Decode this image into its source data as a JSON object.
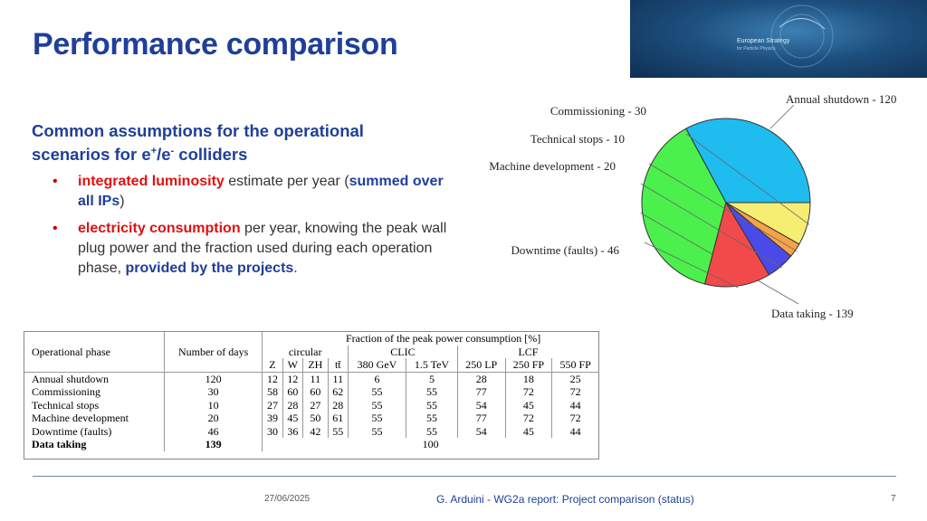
{
  "slide": {
    "title": "Performance comparison",
    "heading_line1": "Common assumptions for the operational",
    "heading_line2_a": "scenarios for e",
    "heading_plus": "+",
    "heading_slash": "/e",
    "heading_minus": "-",
    "heading_line2_b": " colliders",
    "bullet1": {
      "red": "integrated luminosity",
      "text1": " estimate per year (",
      "blue": "summed over all IPs",
      "text2": ")"
    },
    "bullet2": {
      "red": "electricity consumption",
      "text1": " per year, knowing the peak wall plug power and the fraction used during each operation phase, ",
      "blue": "provided by the projects",
      "text2": "."
    }
  },
  "banner": {
    "line1": "European Strategy",
    "line2": "for Particle Physics"
  },
  "chart_data": {
    "type": "pie",
    "title": "",
    "slices": [
      {
        "label": "Annual shutdown - 120",
        "value": 120,
        "color": "#1fbcef"
      },
      {
        "label": "Data taking - 139",
        "value": 139,
        "color": "#4cf04c"
      },
      {
        "label": "Downtime (faults) - 46",
        "value": 46,
        "color": "#f24a4a"
      },
      {
        "label": "Machine development - 20",
        "value": 20,
        "color": "#4a4ae8"
      },
      {
        "label": "Technical stops - 10",
        "value": 10,
        "color": "#f6a24a"
      },
      {
        "label": "Commissioning - 30",
        "value": 30,
        "color": "#f6ee72"
      }
    ]
  },
  "table": {
    "col_phase": "Operational phase",
    "col_days": "Number of days",
    "col_fraction": "Fraction of the peak power consumption [%]",
    "groups": [
      "circular",
      "CLIC",
      "LCF"
    ],
    "subcols": [
      "Z",
      "W",
      "ZH",
      "tt̄",
      "380 GeV",
      "1.5 TeV",
      "250 LP",
      "250 FP",
      "550 FP"
    ],
    "rows": [
      {
        "phase": "Annual shutdown",
        "days": "120",
        "vals": [
          "12",
          "12",
          "11",
          "11",
          "6",
          "5",
          "28",
          "18",
          "25"
        ]
      },
      {
        "phase": "Commissioning",
        "days": "30",
        "vals": [
          "58",
          "60",
          "60",
          "62",
          "55",
          "55",
          "77",
          "72",
          "72"
        ]
      },
      {
        "phase": "Technical stops",
        "days": "10",
        "vals": [
          "27",
          "28",
          "27",
          "28",
          "55",
          "55",
          "54",
          "45",
          "44"
        ]
      },
      {
        "phase": "Machine development",
        "days": "20",
        "vals": [
          "39",
          "45",
          "50",
          "61",
          "55",
          "55",
          "77",
          "72",
          "72"
        ]
      },
      {
        "phase": "Downtime (faults)",
        "days": "46",
        "vals": [
          "30",
          "36",
          "42",
          "55",
          "55",
          "55",
          "54",
          "45",
          "44"
        ]
      }
    ],
    "last_row": {
      "phase": "Data taking",
      "days": "139",
      "val": "100"
    }
  },
  "footer": {
    "date": "27/06/2025",
    "text": "G. Arduini - WG2a report: Project comparison (status)",
    "page": "7"
  }
}
